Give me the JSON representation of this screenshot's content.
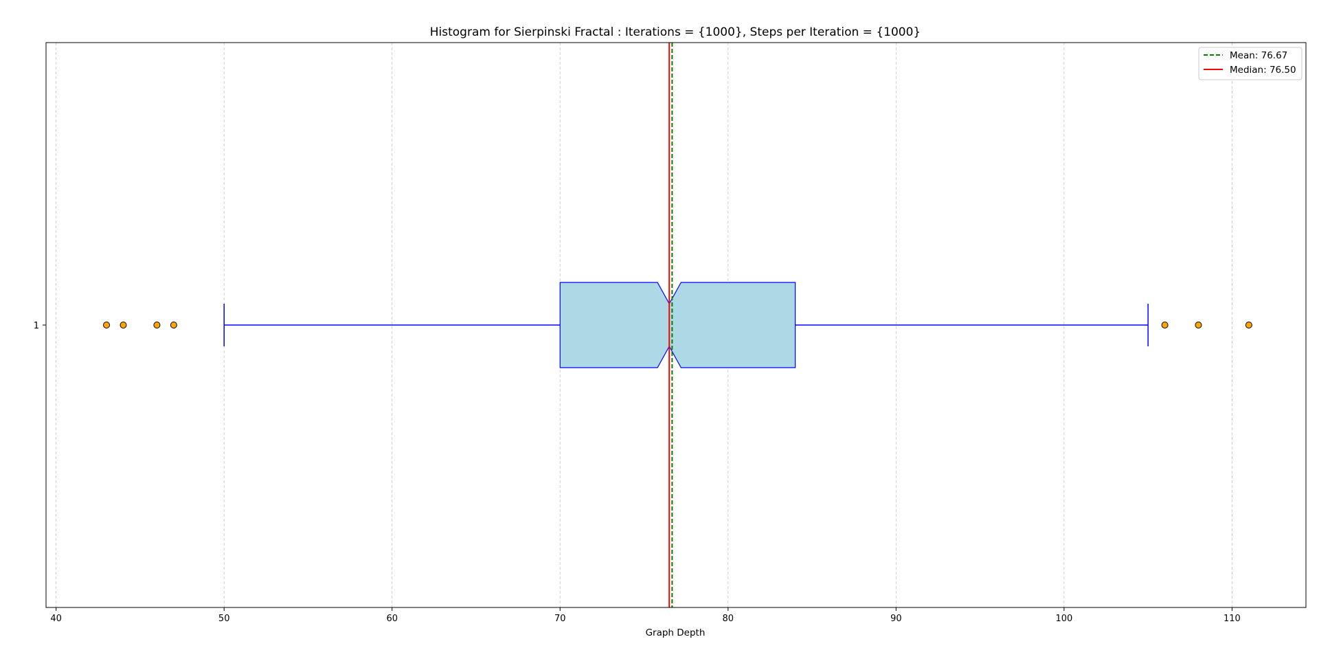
{
  "chart_data": {
    "type": "boxplot",
    "orientation": "horizontal",
    "title": "Histogram for Sierpinski Fractal : Iterations = {1000}, Steps per Iteration = {1000}",
    "xlabel": "Graph Depth",
    "ylabel": "",
    "xlim": [
      39.4,
      114.4
    ],
    "x_ticks": [
      40,
      50,
      60,
      70,
      80,
      90,
      100,
      110
    ],
    "y_ticks": [
      "1"
    ],
    "grid": {
      "x": true,
      "y": false,
      "style": "dashed"
    },
    "box": {
      "category": "1",
      "whisker_low": 50,
      "q1": 70,
      "median": 76.5,
      "q3": 84,
      "whisker_high": 105,
      "notch_low": 75.8,
      "notch_high": 77.2,
      "outliers": [
        43,
        44,
        46,
        47,
        106,
        108,
        111
      ]
    },
    "mean": 76.67,
    "median": 76.5,
    "legend": {
      "position": "top-right",
      "entries": [
        {
          "label": "Mean: 76.67",
          "style": "dashed",
          "color": "#008000"
        },
        {
          "label": "Median: 76.50",
          "style": "solid",
          "color": "#ff0000"
        }
      ]
    },
    "colors": {
      "box_fill": "#add8e6",
      "box_edge": "#0000ff",
      "outlier_fill": "#ffa500",
      "mean_line": "#008000",
      "median_line": "#ff0000",
      "grid": "#b0b0b0"
    }
  }
}
